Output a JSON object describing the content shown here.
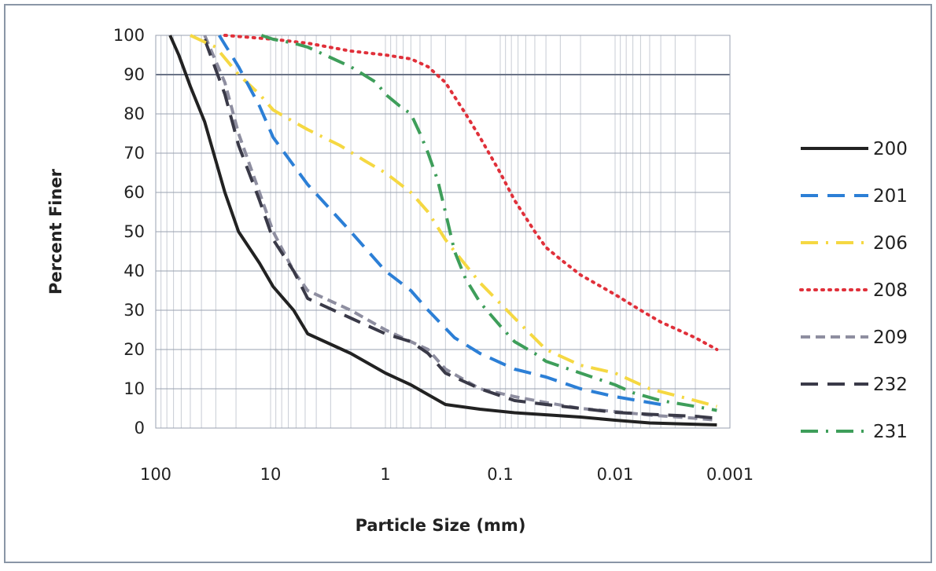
{
  "chart_data": {
    "type": "line",
    "title": "",
    "xlabel": "Particle Size (mm)",
    "ylabel": "Percent Finer",
    "x_scale": "log",
    "x_reversed": true,
    "xlim": [
      100,
      0.001
    ],
    "ylim": [
      0,
      100
    ],
    "x_ticks": [
      100,
      10,
      1,
      0.1,
      0.01,
      0.001
    ],
    "x_tick_labels": [
      "100",
      "10",
      "1",
      "0.1",
      "0.01",
      "0.001"
    ],
    "y_ticks": [
      0,
      10,
      20,
      30,
      40,
      50,
      60,
      70,
      80,
      90,
      100
    ],
    "y_tick_labels": [
      "0",
      "10",
      "20",
      "30",
      "40",
      "50",
      "60",
      "70",
      "80",
      "90",
      "100"
    ],
    "grid": {
      "horizontal": true,
      "vertical_minor": true
    },
    "legend": {
      "position": "right"
    },
    "series": [
      {
        "name": "200",
        "color": "#222222",
        "style": "solid",
        "points": [
          [
            75,
            100
          ],
          [
            63,
            95
          ],
          [
            50,
            87
          ],
          [
            37.5,
            78
          ],
          [
            25,
            60
          ],
          [
            19,
            50
          ],
          [
            12.5,
            42
          ],
          [
            9.5,
            36
          ],
          [
            6.3,
            30
          ],
          [
            4.75,
            24
          ],
          [
            2,
            19
          ],
          [
            1,
            14
          ],
          [
            0.6,
            11
          ],
          [
            0.425,
            8.5
          ],
          [
            0.3,
            6
          ],
          [
            0.15,
            4.8
          ],
          [
            0.075,
            3.9
          ],
          [
            0.02,
            2.8
          ],
          [
            0.01,
            2
          ],
          [
            0.005,
            1.3
          ],
          [
            0.0013,
            0.8
          ]
        ]
      },
      {
        "name": "201",
        "color": "#2C7FD6",
        "style": "longdash",
        "points": [
          [
            28,
            100
          ],
          [
            19,
            92
          ],
          [
            12.5,
            82
          ],
          [
            9.5,
            74
          ],
          [
            4.75,
            62
          ],
          [
            2,
            50
          ],
          [
            1,
            40
          ],
          [
            0.6,
            35
          ],
          [
            0.425,
            30
          ],
          [
            0.25,
            23
          ],
          [
            0.15,
            19
          ],
          [
            0.075,
            15
          ],
          [
            0.04,
            13
          ],
          [
            0.02,
            10
          ],
          [
            0.01,
            8
          ],
          [
            0.004,
            6
          ]
        ]
      },
      {
        "name": "206",
        "color": "#F5D842",
        "style": "dashdot",
        "points": [
          [
            50,
            100
          ],
          [
            30,
            97
          ],
          [
            19,
            90
          ],
          [
            12.5,
            85
          ],
          [
            9.5,
            81
          ],
          [
            6.3,
            78
          ],
          [
            4.75,
            76
          ],
          [
            2.5,
            72
          ],
          [
            1.5,
            68
          ],
          [
            1,
            65
          ],
          [
            0.6,
            60
          ],
          [
            0.425,
            55
          ],
          [
            0.3,
            48
          ],
          [
            0.25,
            45
          ],
          [
            0.15,
            37
          ],
          [
            0.075,
            28
          ],
          [
            0.04,
            20
          ],
          [
            0.02,
            16
          ],
          [
            0.01,
            14
          ],
          [
            0.005,
            10
          ],
          [
            0.002,
            7
          ],
          [
            0.0013,
            5.5
          ]
        ]
      },
      {
        "name": "208",
        "color": "#E0303A",
        "style": "dotted",
        "points": [
          [
            25,
            100
          ],
          [
            9.5,
            99
          ],
          [
            4.75,
            98
          ],
          [
            2,
            96
          ],
          [
            1,
            95
          ],
          [
            0.6,
            94
          ],
          [
            0.425,
            92
          ],
          [
            0.3,
            88
          ],
          [
            0.2,
            80
          ],
          [
            0.15,
            74
          ],
          [
            0.1,
            65
          ],
          [
            0.075,
            58
          ],
          [
            0.05,
            50
          ],
          [
            0.04,
            46
          ],
          [
            0.03,
            43
          ],
          [
            0.02,
            39
          ],
          [
            0.01,
            34
          ],
          [
            0.006,
            30
          ],
          [
            0.004,
            27
          ],
          [
            0.002,
            23
          ],
          [
            0.0013,
            20
          ]
        ]
      },
      {
        "name": "209",
        "color": "#8E8EA0",
        "style": "dashed",
        "points": [
          [
            37.5,
            100
          ],
          [
            25,
            88
          ],
          [
            19,
            75
          ],
          [
            12.5,
            60
          ],
          [
            9.5,
            50
          ],
          [
            6.3,
            40
          ],
          [
            4.75,
            35
          ],
          [
            2,
            30
          ],
          [
            1,
            25
          ],
          [
            0.6,
            22
          ],
          [
            0.425,
            20
          ],
          [
            0.3,
            15
          ],
          [
            0.15,
            10
          ],
          [
            0.075,
            8
          ],
          [
            0.04,
            6.5
          ],
          [
            0.02,
            5
          ],
          [
            0.01,
            4.2
          ],
          [
            0.005,
            3.3
          ],
          [
            0.002,
            2.5
          ],
          [
            0.0013,
            2
          ]
        ]
      },
      {
        "name": "232",
        "color": "#3A3A48",
        "style": "longdash",
        "points": [
          [
            37.5,
            99
          ],
          [
            25,
            85
          ],
          [
            19,
            72
          ],
          [
            12.5,
            58
          ],
          [
            9.5,
            48
          ],
          [
            6.3,
            40
          ],
          [
            4.75,
            33
          ],
          [
            2,
            28
          ],
          [
            1,
            24
          ],
          [
            0.6,
            22
          ],
          [
            0.425,
            19
          ],
          [
            0.3,
            14
          ],
          [
            0.15,
            10
          ],
          [
            0.075,
            7
          ],
          [
            0.04,
            6
          ],
          [
            0.02,
            5
          ],
          [
            0.01,
            4
          ],
          [
            0.005,
            3.5
          ],
          [
            0.002,
            3
          ],
          [
            0.0013,
            2.5
          ]
        ]
      },
      {
        "name": "231",
        "color": "#3E9E5A",
        "style": "dashdot",
        "points": [
          [
            12,
            100
          ],
          [
            9.5,
            99
          ],
          [
            6.3,
            98
          ],
          [
            4.75,
            97
          ],
          [
            2,
            92
          ],
          [
            1.2,
            88
          ],
          [
            1,
            85
          ],
          [
            0.75,
            82
          ],
          [
            0.6,
            80
          ],
          [
            0.5,
            75
          ],
          [
            0.425,
            70
          ],
          [
            0.35,
            63
          ],
          [
            0.3,
            55
          ],
          [
            0.25,
            45
          ],
          [
            0.2,
            38
          ],
          [
            0.15,
            32
          ],
          [
            0.1,
            26
          ],
          [
            0.075,
            22
          ],
          [
            0.05,
            19
          ],
          [
            0.04,
            17
          ],
          [
            0.02,
            14
          ],
          [
            0.01,
            11
          ],
          [
            0.007,
            9
          ],
          [
            0.004,
            7
          ],
          [
            0.002,
            5.5
          ],
          [
            0.0013,
            4.5
          ]
        ]
      }
    ]
  }
}
